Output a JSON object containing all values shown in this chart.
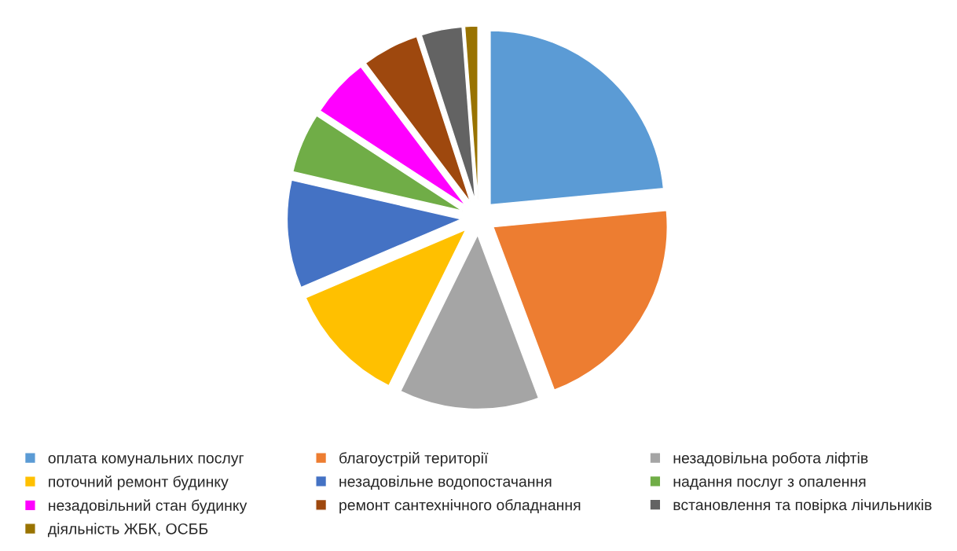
{
  "chart_data": {
    "type": "pie",
    "categories": [
      "оплата комунальних послуг",
      "благоустрій території",
      "незадовільна робота ліфтів",
      "поточний ремонт будинку",
      "незадовільне водопостачання",
      "надання послуг з опалення",
      "незадовільний стан будинку",
      "ремонт сантехнічного обладнання",
      "встановлення та повірка лічильників",
      "діяльність ЖБК, ОСББ"
    ],
    "values": [
      23.5,
      20.8,
      13,
      11.3,
      10,
      5.6,
      5.5,
      5.3,
      3.8,
      1.2
    ],
    "colors": [
      "#5b9bd5",
      "#ed7d31",
      "#a5a5a5",
      "#ffc000",
      "#4472c4",
      "#70ad47",
      "#ff00ff",
      "#9e480e",
      "#636363",
      "#997300"
    ],
    "legend": "bottom"
  }
}
